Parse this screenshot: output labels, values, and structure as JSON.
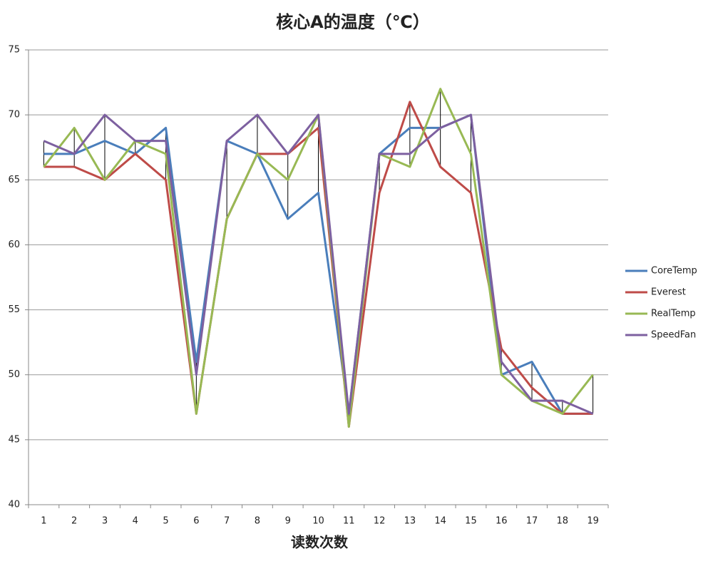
{
  "chart_data": {
    "type": "line",
    "title": "核心A的温度（℃）",
    "x_label": "读数次数",
    "categories": [
      "1",
      "2",
      "3",
      "4",
      "5",
      "6",
      "7",
      "8",
      "9",
      "10",
      "11",
      "12",
      "13",
      "14",
      "15",
      "16",
      "17",
      "18",
      "19"
    ],
    "series": [
      {
        "name": "CoreTemp",
        "color": "#4a7ebb",
        "values": [
          67,
          67,
          68,
          67,
          69,
          51,
          68,
          67,
          62,
          64,
          47,
          67,
          69,
          69,
          70,
          50,
          51,
          47,
          47
        ]
      },
      {
        "name": "Everest",
        "color": "#be4b48",
        "values": [
          66,
          66,
          65,
          67,
          65,
          47,
          62,
          67,
          67,
          69,
          46,
          64,
          71,
          66,
          64,
          52,
          49,
          47,
          47
        ]
      },
      {
        "name": "RealTemp",
        "color": "#98b954",
        "values": [
          66,
          69,
          65,
          68,
          67,
          47,
          62,
          67,
          65,
          70,
          46,
          67,
          66,
          72,
          67,
          50,
          48,
          47,
          50
        ]
      },
      {
        "name": "SpeedFan",
        "color": "#7d60a0",
        "values": [
          68,
          67,
          70,
          68,
          68,
          50,
          68,
          70,
          67,
          70,
          47,
          67,
          67,
          69,
          70,
          51,
          48,
          48,
          47
        ]
      }
    ],
    "ylim": [
      40,
      75
    ],
    "yticks": [
      40,
      45,
      50,
      55,
      60,
      65,
      70,
      75
    ],
    "grid": true,
    "high_low_lines": true,
    "legend": "right"
  }
}
